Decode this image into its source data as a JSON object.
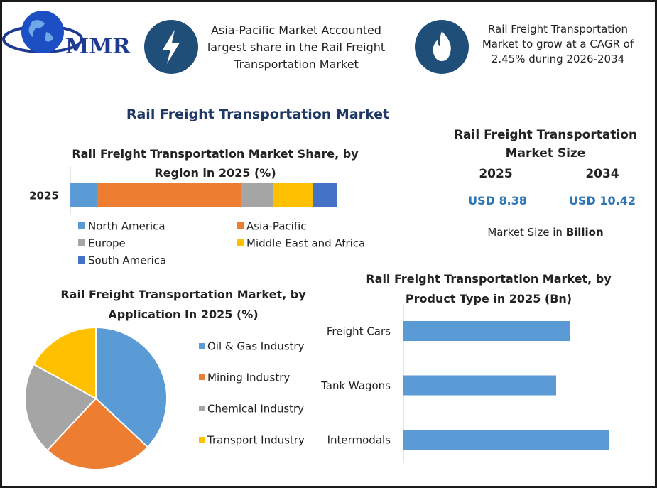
{
  "header": {
    "logo": "MMR",
    "fact1": "Asia-Pacific Market Accounted largest share in the Rail Freight Transportation Market",
    "fact2": "Rail Freight Transportation Market to grow at a CAGR of 2.45% during 2026-2034"
  },
  "title": "Rail Freight Transportation Market",
  "market_size": {
    "title": "Rail Freight Transportation Market Size",
    "years": [
      "2025",
      "2034"
    ],
    "values": [
      "USD 8.38",
      "USD 10.42"
    ],
    "note": "Market Size in",
    "note_bold": "Billion"
  },
  "chart_data": [
    {
      "type": "stacked-bar",
      "title": "Rail Freight Transportation Market Share, by Region in 2025 (%)",
      "categories": [
        "2025"
      ],
      "series": [
        {
          "name": "North America",
          "color": "#5b9bd5",
          "values": [
            10
          ]
        },
        {
          "name": "Asia-Pacific",
          "color": "#ed7d31",
          "values": [
            54
          ]
        },
        {
          "name": "Europe",
          "color": "#a5a5a5",
          "values": [
            12
          ]
        },
        {
          "name": "Middle East and Africa",
          "color": "#ffc000",
          "values": [
            15
          ]
        },
        {
          "name": "South America",
          "color": "#4472c4",
          "values": [
            9
          ]
        }
      ]
    },
    {
      "type": "pie",
      "title": "Rail Freight Transportation Market, by Application In 2025 (%)",
      "categories": [
        "Oil & Gas Industry",
        "Mining Industry",
        "Chemical Industry",
        "Transport Industry"
      ],
      "colors": [
        "#5b9bd5",
        "#ed7d31",
        "#a5a5a5",
        "#ffc000"
      ],
      "values": [
        37,
        25,
        21,
        17
      ]
    },
    {
      "type": "hbar",
      "title": "Rail Freight Transportation Market, by Product Type in 2025 (Bn)",
      "categories": [
        "Freight Cars",
        "Tank Wagons",
        "Intermodals"
      ],
      "color": "#5b9bd5",
      "values": [
        2.66,
        2.44,
        3.28
      ]
    }
  ]
}
